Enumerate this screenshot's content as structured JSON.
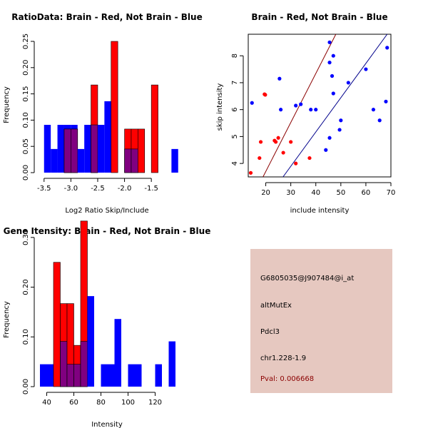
{
  "colors": {
    "brain": "#ff0000",
    "not_brain": "#0000ff",
    "overlap": "#800080",
    "info_bg": "#e6c8c0",
    "pval_text": "#8b0000"
  },
  "chart_data": [
    {
      "type": "bar",
      "subtype": "histogram",
      "title": "RatioData: Brain - Red, Not Brain - Blue",
      "xlabel": "Log2 Ratio Skip/Include",
      "ylabel": "Frequency",
      "xlim": [
        -3.55,
        -1.05
      ],
      "ylim": [
        0,
        0.25
      ],
      "xticks": [
        -3.5,
        -3.0,
        -2.5,
        -2.0,
        -1.5
      ],
      "xtick_labels": [
        "-3.5",
        "-3.0",
        "-2.5",
        "-2.0",
        "-1.5"
      ],
      "yticks": [
        0.0,
        0.05,
        0.1,
        0.15,
        0.2,
        0.25
      ],
      "ytick_labels": [
        "0.00",
        "0.05",
        "0.10",
        "0.15",
        "0.20",
        "0.25"
      ],
      "bin_width": 0.125,
      "bin_starts": [
        -3.5,
        -3.375,
        -3.25,
        -3.125,
        -3.0,
        -2.875,
        -2.75,
        -2.625,
        -2.5,
        -2.375,
        -2.25,
        -2.125,
        -2.0,
        -1.875,
        -1.75,
        -1.625,
        -1.5,
        -1.375,
        -1.25,
        -1.125
      ],
      "series": [
        {
          "name": "Not Brain",
          "color": "#0000ff",
          "values": [
            0.091,
            0.045,
            0.091,
            0.091,
            0.091,
            0.045,
            0.091,
            0.091,
            0.091,
            0.136,
            0,
            0,
            0.045,
            0.045,
            0,
            0,
            0,
            0,
            0,
            0.045
          ]
        },
        {
          "name": "Brain",
          "color": "#ff0000",
          "values": [
            0,
            0,
            0,
            0.083,
            0.083,
            0,
            0,
            0.167,
            0,
            0,
            0.25,
            0,
            0.083,
            0.083,
            0.083,
            0,
            0.167,
            0,
            0,
            0
          ]
        }
      ]
    },
    {
      "type": "scatter",
      "title": "Brain - Red, Not Brain - Blue",
      "xlabel": "include intensity",
      "ylabel": "skip intensity",
      "xlim": [
        13,
        70
      ],
      "ylim": [
        3.5,
        8.8
      ],
      "xticks": [
        20,
        30,
        40,
        50,
        60,
        70
      ],
      "xtick_labels": [
        "20",
        "30",
        "40",
        "50",
        "60",
        "70"
      ],
      "yticks": [
        4,
        5,
        6,
        7,
        8
      ],
      "ytick_labels": [
        "4",
        "5",
        "6",
        "7",
        "8"
      ],
      "series": [
        {
          "name": "Brain",
          "color": "#ff0000",
          "points": [
            [
              14.0,
              3.65
            ],
            [
              17.5,
              4.2
            ],
            [
              18.0,
              4.8
            ],
            [
              19.5,
              6.57
            ],
            [
              19.8,
              6.55
            ],
            [
              23.5,
              4.85
            ],
            [
              24.0,
              4.8
            ],
            [
              25.0,
              4.95
            ],
            [
              27.0,
              4.4
            ],
            [
              30.0,
              4.8
            ],
            [
              32.0,
              4.0
            ],
            [
              37.5,
              4.2
            ]
          ]
        },
        {
          "name": "Not Brain",
          "color": "#0000ff",
          "points": [
            [
              14.5,
              6.25
            ],
            [
              25.5,
              7.15
            ],
            [
              26.0,
              6.0
            ],
            [
              32.0,
              6.15
            ],
            [
              34.0,
              6.2
            ],
            [
              38.0,
              6.0
            ],
            [
              40.0,
              6.0
            ],
            [
              44.0,
              4.5
            ],
            [
              45.5,
              8.5
            ],
            [
              45.5,
              4.95
            ],
            [
              45.5,
              7.75
            ],
            [
              46.5,
              7.25
            ],
            [
              47.0,
              8.0
            ],
            [
              47.0,
              6.6
            ],
            [
              49.5,
              5.25
            ],
            [
              50.0,
              5.6
            ],
            [
              53.0,
              7.0
            ],
            [
              60.0,
              7.5
            ],
            [
              63.0,
              6.0
            ],
            [
              65.5,
              5.6
            ],
            [
              68.0,
              6.3
            ],
            [
              68.5,
              8.3
            ]
          ]
        }
      ],
      "fit_lines": [
        {
          "name": "Brain",
          "color": "#8b0000",
          "from": [
            18.9,
            3.5
          ],
          "to": [
            48.0,
            8.8
          ]
        },
        {
          "name": "Not Brain",
          "color": "#00008b",
          "from": [
            26.9,
            3.5
          ],
          "to": [
            68.5,
            8.8
          ]
        }
      ]
    },
    {
      "type": "bar",
      "subtype": "histogram",
      "title": "Gene Itensity: Brain - Red, Not Brain - Blue",
      "xlabel": "Intensity",
      "ylabel": "Frequency",
      "xlim": [
        35,
        135
      ],
      "ylim": [
        0,
        0.35
      ],
      "xticks": [
        40,
        60,
        80,
        100,
        120
      ],
      "xtick_labels": [
        "40",
        "60",
        "80",
        "100",
        "120"
      ],
      "yticks": [
        0.0,
        0.1,
        0.2,
        0.3
      ],
      "ytick_labels": [
        "0.00",
        "0.10",
        "0.20",
        "0.30"
      ],
      "bin_width": 5,
      "bin_starts": [
        35,
        40,
        45,
        50,
        55,
        60,
        65,
        70,
        75,
        80,
        85,
        90,
        95,
        100,
        105,
        110,
        115,
        120,
        125,
        130
      ],
      "series": [
        {
          "name": "Not Brain",
          "color": "#0000ff",
          "values": [
            0.045,
            0.045,
            0,
            0.091,
            0.045,
            0.045,
            0.091,
            0.182,
            0,
            0.045,
            0.045,
            0.136,
            0,
            0.045,
            0.045,
            0,
            0,
            0.045,
            0,
            0.091
          ]
        },
        {
          "name": "Brain",
          "color": "#ff0000",
          "values": [
            0,
            0,
            0.25,
            0.167,
            0.167,
            0.083,
            0.333,
            0,
            0,
            0,
            0,
            0,
            0,
            0,
            0,
            0,
            0,
            0,
            0,
            0
          ]
        }
      ]
    }
  ],
  "info_panel": {
    "probe_id": "G6805035@J907484@i_at",
    "event_type": "altMutEx",
    "gene": "Pdcl3",
    "location": "chr1.228-1.9",
    "pval": "Pval: 0.006668"
  }
}
